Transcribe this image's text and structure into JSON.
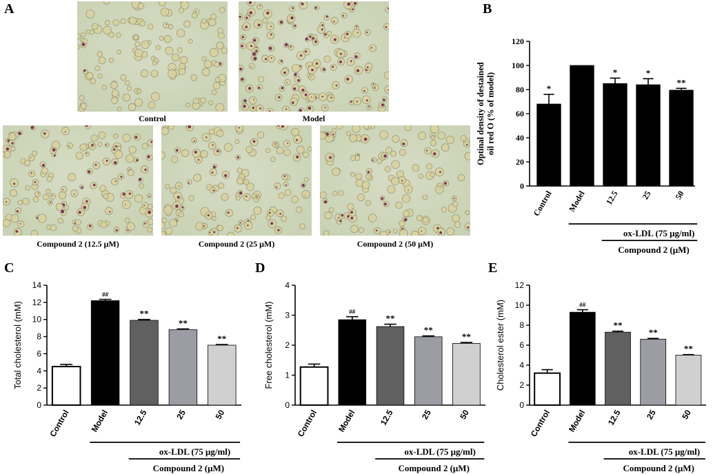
{
  "panels": {
    "A": "A",
    "B": "B",
    "C": "C",
    "D": "D",
    "E": "E"
  },
  "micrographs": [
    {
      "caption": "Control",
      "stain": 0.05
    },
    {
      "caption": "Model",
      "stain": 0.9
    },
    {
      "caption": "Compound 2 (12.5 μM)",
      "stain": 0.55
    },
    {
      "caption": "Compound 2 (25 μM)",
      "stain": 0.45
    },
    {
      "caption": "Compound 2 (50 μM)",
      "stain": 0.3
    }
  ],
  "colors": {
    "bar_black": "#000000",
    "bar_dark_gray": "#606060",
    "bar_mid_gray": "#9c9ca4",
    "bar_light_gray": "#d0d0d0",
    "bar_white": "#ffffff",
    "micro_bg": "#c9d2b4",
    "cell": "#d9d2a0",
    "cell_edge": "#8c8a6a",
    "stain": "#6a1a4a"
  },
  "chart_data": [
    {
      "id": "B",
      "type": "bar",
      "ylabel": "Optinal density of destained oil red O (% of model)",
      "ylim": [
        0,
        120
      ],
      "yticks": [
        "0",
        "20",
        "40",
        "60",
        "80",
        "100",
        "120"
      ],
      "categories": [
        "Control",
        "Model",
        "12.5",
        "25",
        "50"
      ],
      "values": [
        68,
        100,
        85,
        84,
        79.5
      ],
      "errors": [
        8,
        0,
        4.5,
        5,
        1.5
      ],
      "sig": [
        "*",
        "",
        "*",
        "*",
        "**"
      ],
      "fills": [
        "#000000",
        "#000000",
        "#000000",
        "#000000",
        "#000000"
      ],
      "treatment": "ox-LDL (75 μg/ml)",
      "compound": "Compound 2 (μM)",
      "tick_font": "serif"
    },
    {
      "id": "C",
      "type": "bar",
      "ylabel": "Total cholesterol (mM)",
      "ylim": [
        0,
        14
      ],
      "yticks": [
        "0",
        "2",
        "4",
        "6",
        "8",
        "10",
        "12",
        "14"
      ],
      "categories": [
        "Control",
        "Model",
        "12.5",
        "25",
        "50"
      ],
      "values": [
        4.5,
        12.2,
        9.9,
        8.8,
        7.0
      ],
      "errors": [
        0.25,
        0.15,
        0.1,
        0.1,
        0.08
      ],
      "sig": [
        "",
        "##",
        "**",
        "**",
        "**"
      ],
      "fills": [
        "#ffffff",
        "#000000",
        "#606060",
        "#9c9ca4",
        "#d0d0d0"
      ],
      "treatment": "ox-LDL (75 μg/ml)",
      "compound": "Compound 2 (μM)",
      "tick_font": "sans"
    },
    {
      "id": "D",
      "type": "bar",
      "ylabel": "Free cholesterol (mM)",
      "ylim": [
        0,
        4
      ],
      "yticks": [
        "0",
        "1",
        "2",
        "3",
        "4"
      ],
      "categories": [
        "Control",
        "Model",
        "12.5",
        "25",
        "50"
      ],
      "values": [
        1.27,
        2.85,
        2.62,
        2.28,
        2.06
      ],
      "errors": [
        0.1,
        0.1,
        0.08,
        0.03,
        0.03
      ],
      "sig": [
        "",
        "##",
        "**",
        "**",
        "**"
      ],
      "fills": [
        "#ffffff",
        "#000000",
        "#606060",
        "#9c9ca4",
        "#d0d0d0"
      ],
      "treatment": "ox-LDL (75 μg/ml)",
      "compound": "Compound 2 (μM)",
      "tick_font": "sans"
    },
    {
      "id": "E",
      "type": "bar",
      "ylabel": "Cholesterol ester (mM)",
      "ylim": [
        0,
        12
      ],
      "yticks": [
        "0",
        "2",
        "4",
        "6",
        "8",
        "10",
        "12"
      ],
      "categories": [
        "Control",
        "Model",
        "12.5",
        "25",
        "50"
      ],
      "values": [
        3.2,
        9.3,
        7.3,
        6.6,
        5.0
      ],
      "errors": [
        0.35,
        0.25,
        0.1,
        0.08,
        0.06
      ],
      "sig": [
        "",
        "##",
        "**",
        "**",
        "**"
      ],
      "fills": [
        "#ffffff",
        "#000000",
        "#606060",
        "#9c9ca4",
        "#d0d0d0"
      ],
      "treatment": "ox-LDL (75 μg/ml)",
      "compound": "Compound 2 (μM)",
      "tick_font": "sans"
    }
  ]
}
